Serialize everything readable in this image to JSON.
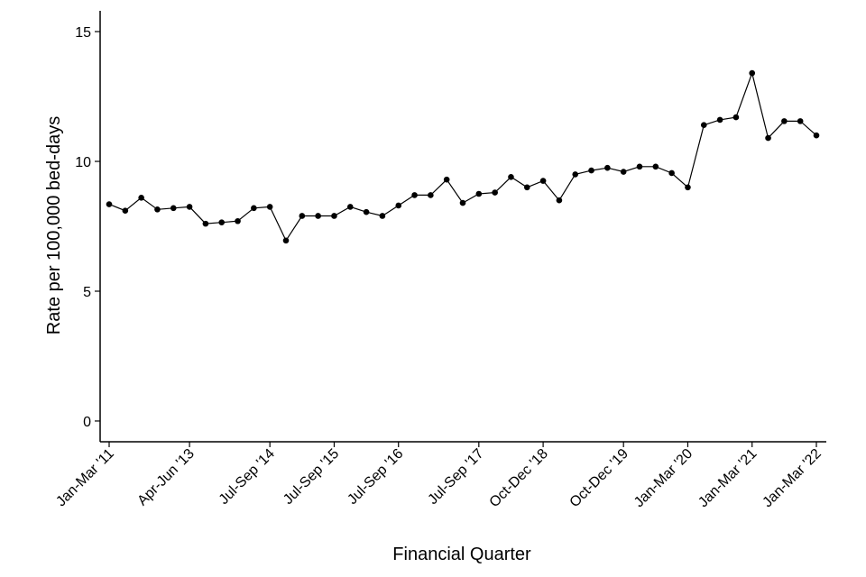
{
  "chart_data": {
    "type": "line",
    "title": "",
    "xlabel": "Financial Quarter",
    "ylabel": "Rate per 100,000 bed-days",
    "ylim": [
      -0.8,
      15.8
    ],
    "yticks": [
      0,
      5,
      10,
      15
    ],
    "xtick_labels": [
      {
        "index": 0,
        "label": "Jan-Mar '11"
      },
      {
        "index": 5,
        "label": "Apr-Jun '13"
      },
      {
        "index": 10,
        "label": "Jul-Sep '14"
      },
      {
        "index": 14,
        "label": "Jul-Sep '15"
      },
      {
        "index": 18,
        "label": "Jul-Sep '16"
      },
      {
        "index": 23,
        "label": "Jul-Sep '17"
      },
      {
        "index": 27,
        "label": "Oct-Dec '18"
      },
      {
        "index": 32,
        "label": "Oct-Dec '19"
      },
      {
        "index": 36,
        "label": "Jan-Mar '20"
      },
      {
        "index": 40,
        "label": "Jan-Mar '21"
      },
      {
        "index": 44,
        "label": "Jan-Mar '22"
      }
    ],
    "grid": false,
    "series": [
      {
        "color": "#000000",
        "values": [
          8.35,
          8.1,
          8.6,
          8.15,
          8.2,
          8.25,
          7.6,
          7.65,
          7.7,
          8.2,
          8.25,
          6.95,
          7.9,
          7.9,
          7.9,
          8.25,
          8.05,
          7.9,
          8.3,
          8.7,
          8.7,
          9.3,
          8.4,
          8.75,
          8.8,
          9.4,
          9.0,
          9.25,
          8.5,
          9.5,
          9.65,
          9.75,
          9.6,
          9.8,
          9.8,
          9.55,
          9.0,
          11.4,
          11.6,
          11.7,
          13.4,
          10.9,
          11.55,
          11.55,
          11.0
        ]
      }
    ]
  }
}
